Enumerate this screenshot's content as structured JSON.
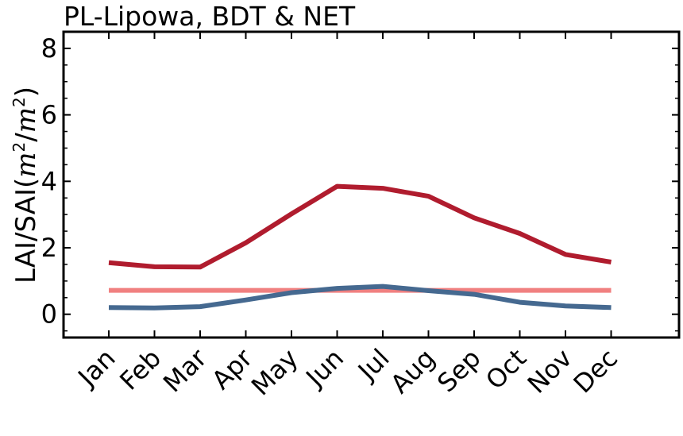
{
  "chart_data": {
    "type": "line",
    "title": "PL-Lipowa, BDT & NET",
    "xlabel": "",
    "ylabel": "LAI/SAI",
    "ylabel_unit_base": "m",
    "ylabel_unit_exp": "2",
    "categories": [
      "Jan",
      "Feb",
      "Mar",
      "Apr",
      "May",
      "Jun",
      "Jul",
      "Aug",
      "Sep",
      "Oct",
      "Nov",
      "Dec"
    ],
    "ylim": [
      -0.7,
      8.5
    ],
    "yticks": [
      0,
      2,
      4,
      6,
      8
    ],
    "ytick_labels": [
      "0",
      "2",
      "4",
      "6",
      "8"
    ],
    "grid": false,
    "series": [
      {
        "color": "#b01c2e",
        "values": [
          1.55,
          1.43,
          1.42,
          2.15,
          3.02,
          3.85,
          3.79,
          3.55,
          2.9,
          2.43,
          1.8,
          1.57
        ]
      },
      {
        "color": "#f08080",
        "values": [
          0.72,
          0.72,
          0.72,
          0.72,
          0.72,
          0.72,
          0.72,
          0.72,
          0.72,
          0.72,
          0.72,
          0.72
        ]
      },
      {
        "color": "#456990",
        "values": [
          0.2,
          0.19,
          0.23,
          0.43,
          0.65,
          0.78,
          0.84,
          0.71,
          0.6,
          0.36,
          0.25,
          0.2
        ]
      }
    ]
  }
}
